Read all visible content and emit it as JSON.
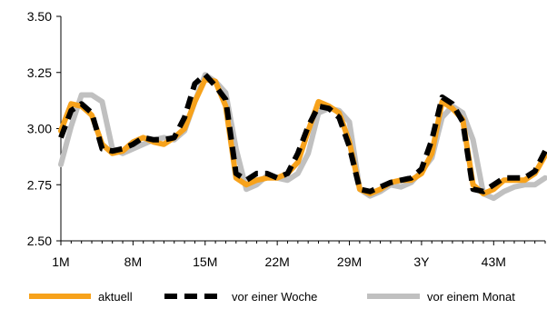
{
  "chart_data": {
    "type": "line",
    "ylim": [
      2.5,
      3.5
    ],
    "y_ticks": [
      "3.50",
      "3.25",
      "3.00",
      "2.75",
      "2.50"
    ],
    "y_tick_values": [
      3.5,
      3.25,
      3.0,
      2.75,
      2.5
    ],
    "x_tick_labels": [
      "1M",
      "8M",
      "15M",
      "22M",
      "29M",
      "3Y",
      "43M"
    ],
    "grid": false,
    "legend_position": "bottom",
    "x": [
      "1M",
      "2M",
      "3M",
      "4M",
      "5M",
      "6M",
      "7M",
      "8M",
      "9M",
      "10M",
      "11M",
      "12M",
      "13M",
      "14M",
      "15M",
      "16M",
      "17M",
      "18M",
      "19M",
      "20M",
      "21M",
      "22M",
      "23M",
      "24M",
      "25M",
      "26M",
      "27M",
      "28M",
      "29M",
      "30M",
      "31M",
      "32M",
      "33M",
      "34M",
      "35M",
      "36M",
      "37M",
      "38M",
      "39M",
      "40M",
      "41M",
      "42M",
      "43M",
      "44M",
      "45M",
      "46M",
      "47M",
      "48M"
    ],
    "series": [
      {
        "name": "aktuell",
        "color": "#f7a21b",
        "style": "solid",
        "values": [
          2.99,
          3.11,
          3.1,
          3.06,
          2.93,
          2.89,
          2.9,
          2.94,
          2.96,
          2.94,
          2.93,
          2.96,
          3.0,
          3.12,
          3.22,
          3.21,
          3.1,
          2.78,
          2.75,
          2.77,
          2.78,
          2.78,
          2.8,
          2.85,
          2.99,
          3.12,
          3.1,
          3.07,
          2.94,
          2.73,
          2.71,
          2.73,
          2.76,
          2.77,
          2.77,
          2.8,
          2.89,
          3.12,
          3.09,
          3.04,
          2.75,
          2.71,
          2.73,
          2.77,
          2.77,
          2.77,
          2.8,
          2.88
        ]
      },
      {
        "name": "vor einer Woche",
        "color": "#000000",
        "style": "dashed",
        "values": [
          2.96,
          3.08,
          3.11,
          3.07,
          2.91,
          2.9,
          2.91,
          2.93,
          2.96,
          2.95,
          2.95,
          2.96,
          3.05,
          3.2,
          3.24,
          3.19,
          3.13,
          2.8,
          2.77,
          2.8,
          2.8,
          2.78,
          2.8,
          2.89,
          3.01,
          3.1,
          3.09,
          3.05,
          2.92,
          2.73,
          2.72,
          2.74,
          2.76,
          2.77,
          2.78,
          2.82,
          2.95,
          3.14,
          3.11,
          3.03,
          2.73,
          2.72,
          2.75,
          2.78,
          2.78,
          2.78,
          2.81,
          2.9
        ]
      },
      {
        "name": "vor einem Monat",
        "color": "#c0c0c0",
        "style": "solid",
        "values": [
          2.84,
          3.01,
          3.15,
          3.15,
          3.12,
          2.91,
          2.89,
          2.91,
          2.93,
          2.95,
          2.96,
          2.95,
          2.99,
          3.12,
          3.24,
          3.21,
          3.16,
          2.91,
          2.73,
          2.75,
          2.79,
          2.78,
          2.77,
          2.8,
          2.89,
          3.07,
          3.09,
          3.08,
          3.03,
          2.73,
          2.7,
          2.72,
          2.75,
          2.74,
          2.76,
          2.81,
          2.87,
          3.05,
          3.1,
          3.07,
          2.95,
          2.71,
          2.69,
          2.72,
          2.74,
          2.75,
          2.75,
          2.78
        ]
      }
    ]
  }
}
